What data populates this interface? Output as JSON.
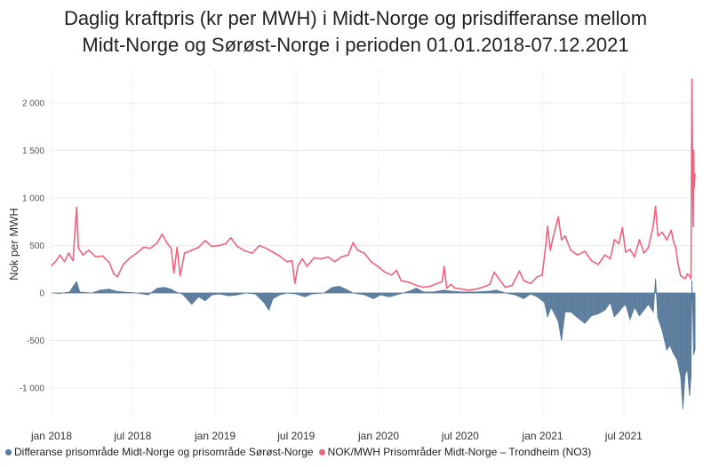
{
  "chart_data": {
    "type": "line",
    "title": [
      "Daglig kraftpris (kr per MWH) i Midt-Norge og prisdifferanse mellom",
      "Midt-Norge og Sørøst-Norge i perioden 01.01.2018-07.12.2021"
    ],
    "xlabel": "",
    "ylabel": "Nok per MWH",
    "ylim": [
      -1300,
      2300
    ],
    "yticks": [
      2000,
      1500,
      1000,
      500,
      0,
      -500,
      -1000
    ],
    "ytick_labels": [
      "2 000",
      "1 500",
      "1 000",
      "500",
      "0",
      "-500",
      "-1 000"
    ],
    "x_range": [
      "2018-01-01",
      "2021-12-07"
    ],
    "xticks": [
      "2018-01-01",
      "2018-07-01",
      "2019-01-01",
      "2019-07-01",
      "2020-01-01",
      "2020-07-01",
      "2021-01-01",
      "2021-07-01"
    ],
    "xtick_labels": [
      "jan 2018",
      "jul 2018",
      "jan 2019",
      "jul 2019",
      "jan 2020",
      "jul 2020",
      "jan 2021",
      "jul 2021"
    ],
    "grid": {
      "horizontal": true,
      "vertical": "dotted"
    },
    "legend_position": "bottom-left",
    "series": [
      {
        "name": "NOK/MWH Prisområder Midt-Norge – Trondheim (NO3)",
        "color": "#f0627e",
        "kind": "line",
        "points": [
          [
            "2018-01-01",
            290
          ],
          [
            "2018-01-10",
            330
          ],
          [
            "2018-01-20",
            400
          ],
          [
            "2018-01-30",
            330
          ],
          [
            "2018-02-08",
            420
          ],
          [
            "2018-02-18",
            340
          ],
          [
            "2018-02-26",
            900
          ],
          [
            "2018-03-02",
            470
          ],
          [
            "2018-03-12",
            400
          ],
          [
            "2018-03-25",
            450
          ],
          [
            "2018-04-10",
            380
          ],
          [
            "2018-04-25",
            390
          ],
          [
            "2018-05-10",
            320
          ],
          [
            "2018-05-20",
            200
          ],
          [
            "2018-05-28",
            170
          ],
          [
            "2018-06-10",
            300
          ],
          [
            "2018-06-25",
            370
          ],
          [
            "2018-07-10",
            420
          ],
          [
            "2018-07-25",
            480
          ],
          [
            "2018-08-10",
            470
          ],
          [
            "2018-08-25",
            530
          ],
          [
            "2018-09-05",
            620
          ],
          [
            "2018-09-15",
            530
          ],
          [
            "2018-09-25",
            470
          ],
          [
            "2018-10-01",
            210
          ],
          [
            "2018-10-08",
            480
          ],
          [
            "2018-10-15",
            180
          ],
          [
            "2018-10-25",
            420
          ],
          [
            "2018-11-10",
            450
          ],
          [
            "2018-11-25",
            480
          ],
          [
            "2018-12-10",
            550
          ],
          [
            "2018-12-25",
            490
          ],
          [
            "2019-01-10",
            500
          ],
          [
            "2019-01-25",
            520
          ],
          [
            "2019-02-05",
            580
          ],
          [
            "2019-02-20",
            490
          ],
          [
            "2019-03-10",
            440
          ],
          [
            "2019-03-25",
            420
          ],
          [
            "2019-04-10",
            500
          ],
          [
            "2019-04-25",
            470
          ],
          [
            "2019-05-10",
            430
          ],
          [
            "2019-05-25",
            390
          ],
          [
            "2019-06-10",
            330
          ],
          [
            "2019-06-22",
            340
          ],
          [
            "2019-06-28",
            100
          ],
          [
            "2019-07-05",
            290
          ],
          [
            "2019-07-15",
            360
          ],
          [
            "2019-07-25",
            280
          ],
          [
            "2019-08-10",
            370
          ],
          [
            "2019-08-25",
            360
          ],
          [
            "2019-09-10",
            380
          ],
          [
            "2019-09-25",
            330
          ],
          [
            "2019-10-10",
            380
          ],
          [
            "2019-10-25",
            400
          ],
          [
            "2019-11-05",
            530
          ],
          [
            "2019-11-15",
            450
          ],
          [
            "2019-11-30",
            420
          ],
          [
            "2019-12-15",
            330
          ],
          [
            "2019-12-30",
            280
          ],
          [
            "2020-01-15",
            220
          ],
          [
            "2020-01-30",
            190
          ],
          [
            "2020-02-10",
            240
          ],
          [
            "2020-02-20",
            130
          ],
          [
            "2020-03-10",
            110
          ],
          [
            "2020-03-25",
            80
          ],
          [
            "2020-04-10",
            60
          ],
          [
            "2020-04-25",
            70
          ],
          [
            "2020-05-10",
            100
          ],
          [
            "2020-05-22",
            120
          ],
          [
            "2020-05-26",
            280
          ],
          [
            "2020-06-01",
            50
          ],
          [
            "2020-06-10",
            90
          ],
          [
            "2020-06-20",
            50
          ],
          [
            "2020-07-05",
            40
          ],
          [
            "2020-07-20",
            30
          ],
          [
            "2020-08-05",
            40
          ],
          [
            "2020-08-20",
            60
          ],
          [
            "2020-09-05",
            90
          ],
          [
            "2020-09-15",
            220
          ],
          [
            "2020-09-25",
            150
          ],
          [
            "2020-10-10",
            60
          ],
          [
            "2020-10-25",
            80
          ],
          [
            "2020-11-10",
            230
          ],
          [
            "2020-11-20",
            130
          ],
          [
            "2020-12-05",
            100
          ],
          [
            "2020-12-20",
            170
          ],
          [
            "2020-12-31",
            190
          ],
          [
            "2021-01-08",
            500
          ],
          [
            "2021-01-12",
            700
          ],
          [
            "2021-01-18",
            450
          ],
          [
            "2021-01-25",
            600
          ],
          [
            "2021-02-05",
            800
          ],
          [
            "2021-02-12",
            560
          ],
          [
            "2021-02-20",
            600
          ],
          [
            "2021-03-05",
            450
          ],
          [
            "2021-03-20",
            400
          ],
          [
            "2021-04-05",
            440
          ],
          [
            "2021-04-20",
            340
          ],
          [
            "2021-05-05",
            300
          ],
          [
            "2021-05-20",
            400
          ],
          [
            "2021-06-01",
            360
          ],
          [
            "2021-06-10",
            560
          ],
          [
            "2021-06-20",
            520
          ],
          [
            "2021-06-28",
            690
          ],
          [
            "2021-07-05",
            430
          ],
          [
            "2021-07-15",
            460
          ],
          [
            "2021-07-25",
            380
          ],
          [
            "2021-08-05",
            560
          ],
          [
            "2021-08-15",
            420
          ],
          [
            "2021-08-25",
            480
          ],
          [
            "2021-09-05",
            710
          ],
          [
            "2021-09-10",
            910
          ],
          [
            "2021-09-15",
            600
          ],
          [
            "2021-09-25",
            640
          ],
          [
            "2021-10-05",
            560
          ],
          [
            "2021-10-15",
            660
          ],
          [
            "2021-10-20",
            540
          ],
          [
            "2021-10-25",
            480
          ],
          [
            "2021-10-30",
            310
          ],
          [
            "2021-11-05",
            180
          ],
          [
            "2021-11-15",
            150
          ],
          [
            "2021-11-20",
            200
          ],
          [
            "2021-11-25",
            180
          ],
          [
            "2021-11-28",
            150
          ],
          [
            "2021-11-30",
            2250
          ],
          [
            "2021-12-02",
            1200
          ],
          [
            "2021-12-03",
            700
          ],
          [
            "2021-12-04",
            1500
          ],
          [
            "2021-12-05",
            1100
          ],
          [
            "2021-12-07",
            1250
          ]
        ]
      },
      {
        "name": "Differanse prisområde Midt-Norge  og prisområde Sørøst-Norge",
        "color": "#57799b",
        "kind": "area",
        "points": [
          [
            "2018-01-01",
            0
          ],
          [
            "2018-01-20",
            -5
          ],
          [
            "2018-02-10",
            10
          ],
          [
            "2018-02-20",
            80
          ],
          [
            "2018-02-26",
            120
          ],
          [
            "2018-03-05",
            10
          ],
          [
            "2018-04-01",
            0
          ],
          [
            "2018-04-20",
            30
          ],
          [
            "2018-05-10",
            40
          ],
          [
            "2018-05-25",
            20
          ],
          [
            "2018-06-10",
            10
          ],
          [
            "2018-07-10",
            0
          ],
          [
            "2018-08-05",
            -20
          ],
          [
            "2018-08-25",
            50
          ],
          [
            "2018-09-10",
            60
          ],
          [
            "2018-09-25",
            40
          ],
          [
            "2018-10-05",
            10
          ],
          [
            "2018-10-20",
            -10
          ],
          [
            "2018-11-10",
            -120
          ],
          [
            "2018-11-25",
            -40
          ],
          [
            "2018-12-10",
            -80
          ],
          [
            "2018-12-25",
            -20
          ],
          [
            "2019-01-10",
            -10
          ],
          [
            "2019-02-01",
            -30
          ],
          [
            "2019-02-20",
            -20
          ],
          [
            "2019-03-10",
            0
          ],
          [
            "2019-04-01",
            -10
          ],
          [
            "2019-04-20",
            -100
          ],
          [
            "2019-05-01",
            -180
          ],
          [
            "2019-05-10",
            -60
          ],
          [
            "2019-05-25",
            -20
          ],
          [
            "2019-06-10",
            0
          ],
          [
            "2019-07-01",
            -10
          ],
          [
            "2019-07-20",
            -40
          ],
          [
            "2019-08-05",
            -10
          ],
          [
            "2019-09-01",
            0
          ],
          [
            "2019-09-20",
            60
          ],
          [
            "2019-10-05",
            70
          ],
          [
            "2019-10-20",
            40
          ],
          [
            "2019-11-05",
            0
          ],
          [
            "2019-12-01",
            -20
          ],
          [
            "2019-12-20",
            -60
          ],
          [
            "2020-01-05",
            -20
          ],
          [
            "2020-01-25",
            -40
          ],
          [
            "2020-02-10",
            -20
          ],
          [
            "2020-02-25",
            0
          ],
          [
            "2020-03-10",
            20
          ],
          [
            "2020-03-25",
            50
          ],
          [
            "2020-04-10",
            10
          ],
          [
            "2020-05-01",
            10
          ],
          [
            "2020-05-25",
            30
          ],
          [
            "2020-06-10",
            20
          ],
          [
            "2020-07-05",
            10
          ],
          [
            "2020-08-05",
            10
          ],
          [
            "2020-09-05",
            20
          ],
          [
            "2020-09-20",
            30
          ],
          [
            "2020-10-10",
            0
          ],
          [
            "2020-11-01",
            -20
          ],
          [
            "2020-11-20",
            -60
          ],
          [
            "2020-12-05",
            -10
          ],
          [
            "2020-12-20",
            -40
          ],
          [
            "2021-01-05",
            -100
          ],
          [
            "2021-01-12",
            -250
          ],
          [
            "2021-01-20",
            -150
          ],
          [
            "2021-02-05",
            -300
          ],
          [
            "2021-02-12",
            -500
          ],
          [
            "2021-02-20",
            -200
          ],
          [
            "2021-03-05",
            -200
          ],
          [
            "2021-03-20",
            -260
          ],
          [
            "2021-04-05",
            -320
          ],
          [
            "2021-04-20",
            -240
          ],
          [
            "2021-05-05",
            -220
          ],
          [
            "2021-05-20",
            -180
          ],
          [
            "2021-06-01",
            -100
          ],
          [
            "2021-06-10",
            -250
          ],
          [
            "2021-06-20",
            -200
          ],
          [
            "2021-06-28",
            -150
          ],
          [
            "2021-07-05",
            -120
          ],
          [
            "2021-07-15",
            -280
          ],
          [
            "2021-07-25",
            -150
          ],
          [
            "2021-08-05",
            -240
          ],
          [
            "2021-08-15",
            -180
          ],
          [
            "2021-08-25",
            -120
          ],
          [
            "2021-09-05",
            -200
          ],
          [
            "2021-09-10",
            150
          ],
          [
            "2021-09-15",
            -260
          ],
          [
            "2021-09-25",
            -400
          ],
          [
            "2021-10-05",
            -600
          ],
          [
            "2021-10-12",
            -550
          ],
          [
            "2021-10-20",
            -640
          ],
          [
            "2021-10-28",
            -700
          ],
          [
            "2021-11-05",
            -880
          ],
          [
            "2021-11-10",
            -1220
          ],
          [
            "2021-11-15",
            -860
          ],
          [
            "2021-11-20",
            -800
          ],
          [
            "2021-11-25",
            -1080
          ],
          [
            "2021-11-28",
            -880
          ],
          [
            "2021-11-30",
            130
          ],
          [
            "2021-12-02",
            -200
          ],
          [
            "2021-12-04",
            -650
          ],
          [
            "2021-12-07",
            -600
          ]
        ]
      }
    ]
  },
  "legend": {
    "items": [
      {
        "label": "Differanse prisområde Midt-Norge  og prisområde Sørøst-Norge",
        "color": "#57799b"
      },
      {
        "label": "NOK/MWH Prisområder Midt-Norge – Trondheim (NO3)",
        "color": "#f0627e"
      }
    ]
  }
}
